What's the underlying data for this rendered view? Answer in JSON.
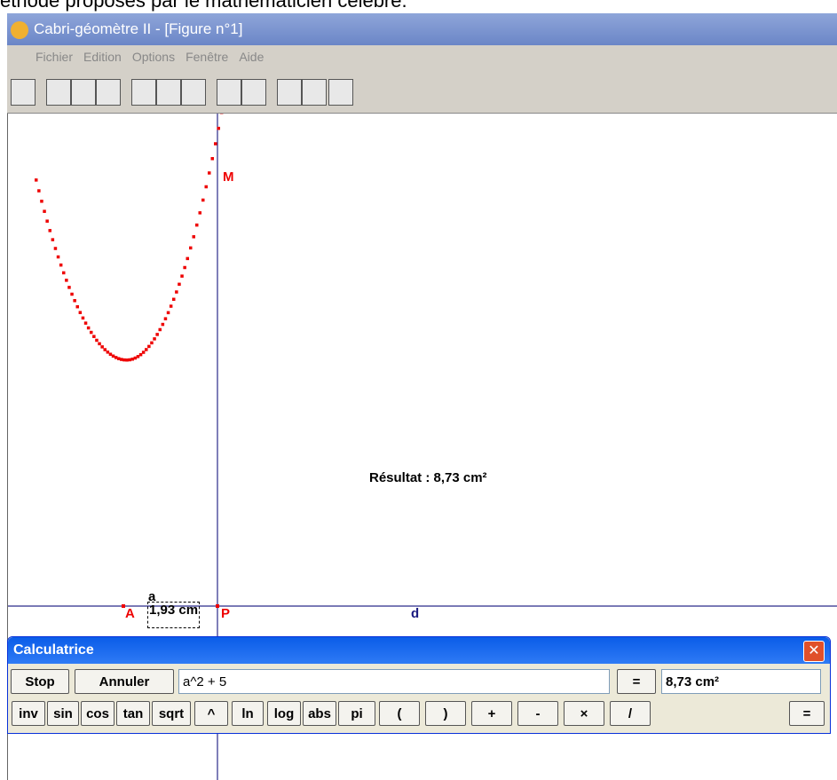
{
  "page_caption": "éthode proposés par le mathématicien célèbre.",
  "window": {
    "title": "Cabri-géomètre II - [Figure n°1]",
    "menu": [
      "Fichier",
      "Edition",
      "Options",
      "Fenêtre",
      "Aide"
    ]
  },
  "canvas": {
    "point_m": "M",
    "result": "Résultat : 8,73  cm²",
    "var_name": "a",
    "point_a": "A",
    "measure": "1,93  cm",
    "point_p": "P",
    "line_d": "d"
  },
  "calculator": {
    "title": "Calculatrice",
    "stop": "Stop",
    "cancel": "Annuler",
    "expression": "a^2 + 5",
    "equals": "=",
    "output": "8,73  cm²",
    "keys": [
      "inv",
      "sin",
      "cos",
      "tan",
      "sqrt",
      "^",
      "ln",
      "log",
      "abs",
      "pi",
      "(",
      ")",
      "+",
      "-",
      "×",
      "/",
      "="
    ]
  }
}
